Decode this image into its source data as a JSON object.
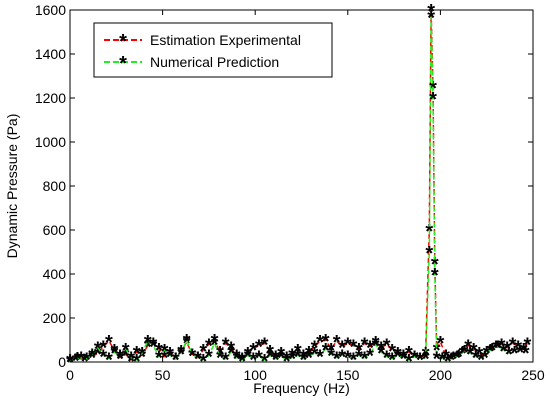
{
  "chart_data": {
    "type": "line",
    "title": "",
    "xlabel": "Frequency (Hz)",
    "ylabel": "Dynamic Pressure (Pa)",
    "xlim": [
      0,
      250
    ],
    "ylim": [
      0,
      1600
    ],
    "xticks": [
      0,
      50,
      100,
      150,
      200,
      250
    ],
    "yticks": [
      0,
      200,
      400,
      600,
      800,
      1000,
      1200,
      1400,
      1600
    ],
    "grid": false,
    "legend_position": "top-left",
    "series": [
      {
        "name": "Estimation Experimental",
        "color": "#ff0000",
        "line_style": "dashed",
        "marker": "asterisk",
        "points": [
          [
            0,
            5
          ],
          [
            4,
            18
          ],
          [
            8,
            10
          ],
          [
            12,
            25
          ],
          [
            15,
            40
          ],
          [
            18,
            70
          ],
          [
            21,
            95
          ],
          [
            24,
            55
          ],
          [
            27,
            20
          ],
          [
            30,
            35
          ],
          [
            33,
            10
          ],
          [
            36,
            45
          ],
          [
            39,
            30
          ],
          [
            42,
            75
          ],
          [
            45,
            85
          ],
          [
            48,
            60
          ],
          [
            51,
            25
          ],
          [
            54,
            40
          ],
          [
            57,
            15
          ],
          [
            60,
            50
          ],
          [
            63,
            90
          ],
          [
            66,
            35
          ],
          [
            69,
            20
          ],
          [
            72,
            55
          ],
          [
            75,
            80
          ],
          [
            78,
            100
          ],
          [
            81,
            45
          ],
          [
            84,
            85
          ],
          [
            87,
            65
          ],
          [
            90,
            30
          ],
          [
            93,
            15
          ],
          [
            96,
            40
          ],
          [
            99,
            60
          ],
          [
            102,
            75
          ],
          [
            105,
            85
          ],
          [
            108,
            50
          ],
          [
            111,
            25
          ],
          [
            114,
            40
          ],
          [
            117,
            20
          ],
          [
            120,
            35
          ],
          [
            123,
            55
          ],
          [
            126,
            30
          ],
          [
            129,
            45
          ],
          [
            132,
            70
          ],
          [
            135,
            95
          ],
          [
            138,
            100
          ],
          [
            141,
            60
          ],
          [
            144,
            95
          ],
          [
            147,
            70
          ],
          [
            150,
            85
          ],
          [
            153,
            75
          ],
          [
            156,
            60
          ],
          [
            159,
            85
          ],
          [
            162,
            70
          ],
          [
            165,
            90
          ],
          [
            168,
            65
          ],
          [
            171,
            80
          ],
          [
            174,
            55
          ],
          [
            177,
            40
          ],
          [
            180,
            30
          ],
          [
            183,
            45
          ],
          [
            186,
            25
          ],
          [
            189,
            15
          ],
          [
            192,
            40
          ],
          [
            194,
            600
          ],
          [
            195,
            1600
          ],
          [
            196,
            1250
          ],
          [
            197,
            450
          ],
          [
            198,
            60
          ],
          [
            200,
            90
          ],
          [
            203,
            30
          ],
          [
            206,
            15
          ],
          [
            209,
            25
          ],
          [
            212,
            45
          ],
          [
            215,
            75
          ],
          [
            218,
            60
          ],
          [
            221,
            40
          ],
          [
            224,
            25
          ],
          [
            227,
            55
          ],
          [
            230,
            70
          ],
          [
            233,
            80
          ],
          [
            236,
            65
          ],
          [
            239,
            85
          ],
          [
            242,
            70
          ],
          [
            245,
            60
          ],
          [
            247,
            85
          ]
        ]
      },
      {
        "name": "Numerical Prediction",
        "color": "#22ee22",
        "line_style": "dashed",
        "marker": "asterisk",
        "points": [
          [
            0,
            8
          ],
          [
            3,
            12
          ],
          [
            6,
            20
          ],
          [
            9,
            15
          ],
          [
            12,
            35
          ],
          [
            15,
            65
          ],
          [
            18,
            30
          ],
          [
            21,
            15
          ],
          [
            24,
            45
          ],
          [
            27,
            30
          ],
          [
            30,
            60
          ],
          [
            33,
            20
          ],
          [
            36,
            10
          ],
          [
            39,
            40
          ],
          [
            42,
            95
          ],
          [
            45,
            75
          ],
          [
            48,
            25
          ],
          [
            51,
            55
          ],
          [
            54,
            30
          ],
          [
            57,
            15
          ],
          [
            60,
            40
          ],
          [
            63,
            100
          ],
          [
            66,
            35
          ],
          [
            69,
            20
          ],
          [
            72,
            10
          ],
          [
            75,
            30
          ],
          [
            78,
            85
          ],
          [
            81,
            25
          ],
          [
            84,
            15
          ],
          [
            87,
            45
          ],
          [
            90,
            20
          ],
          [
            93,
            10
          ],
          [
            96,
            30
          ],
          [
            99,
            15
          ],
          [
            102,
            25
          ],
          [
            105,
            10
          ],
          [
            108,
            30
          ],
          [
            111,
            15
          ],
          [
            114,
            25
          ],
          [
            117,
            10
          ],
          [
            120,
            20
          ],
          [
            123,
            30
          ],
          [
            126,
            15
          ],
          [
            129,
            25
          ],
          [
            132,
            40
          ],
          [
            135,
            30
          ],
          [
            138,
            60
          ],
          [
            141,
            35
          ],
          [
            144,
            20
          ],
          [
            147,
            30
          ],
          [
            150,
            25
          ],
          [
            153,
            15
          ],
          [
            156,
            30
          ],
          [
            159,
            20
          ],
          [
            162,
            35
          ],
          [
            165,
            80
          ],
          [
            168,
            45
          ],
          [
            171,
            25
          ],
          [
            174,
            15
          ],
          [
            177,
            30
          ],
          [
            180,
            20
          ],
          [
            183,
            10
          ],
          [
            186,
            25
          ],
          [
            189,
            15
          ],
          [
            192,
            20
          ],
          [
            194,
            500
          ],
          [
            195,
            1570
          ],
          [
            196,
            1200
          ],
          [
            197,
            400
          ],
          [
            198,
            20
          ],
          [
            201,
            15
          ],
          [
            204,
            10
          ],
          [
            207,
            20
          ],
          [
            210,
            30
          ],
          [
            213,
            50
          ],
          [
            216,
            40
          ],
          [
            219,
            25
          ],
          [
            222,
            15
          ],
          [
            225,
            45
          ],
          [
            228,
            60
          ],
          [
            231,
            70
          ],
          [
            234,
            55
          ],
          [
            237,
            40
          ],
          [
            240,
            45
          ],
          [
            243,
            50
          ],
          [
            246,
            45
          ]
        ]
      }
    ]
  }
}
